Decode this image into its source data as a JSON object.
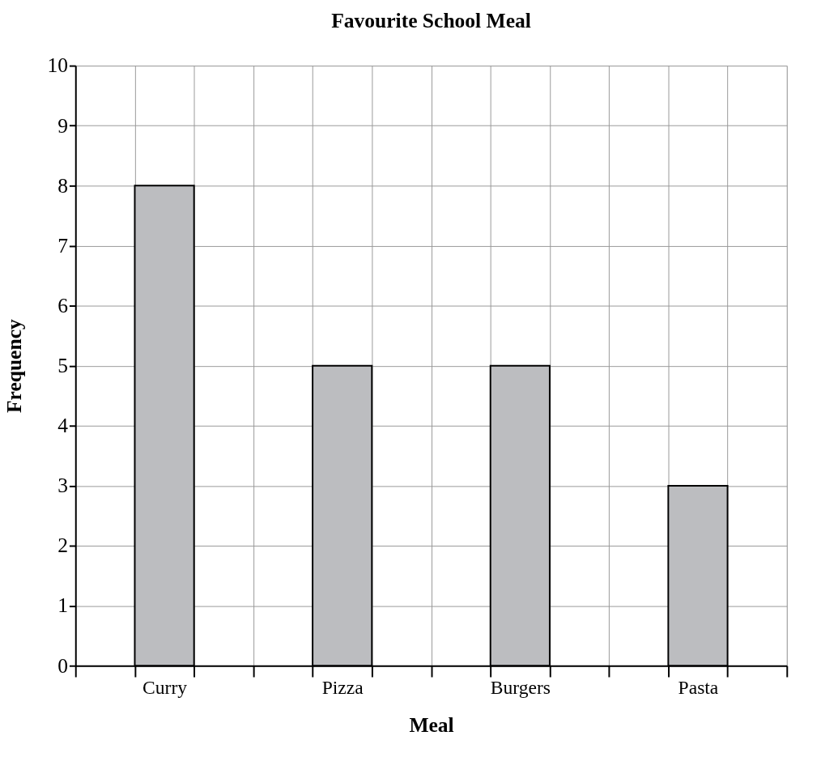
{
  "chart_data": {
    "type": "bar",
    "title": "Favourite School Meal",
    "xlabel": "Meal",
    "ylabel": "Frequency",
    "categories": [
      "Curry",
      "Pizza",
      "Burgers",
      "Pasta"
    ],
    "values": [
      8,
      5,
      5,
      3
    ],
    "color": "#bcbdc0",
    "ylim": [
      0,
      10
    ],
    "yticks": [
      0,
      1,
      2,
      3,
      4,
      5,
      6,
      7,
      8,
      9,
      10
    ],
    "grid": true
  }
}
